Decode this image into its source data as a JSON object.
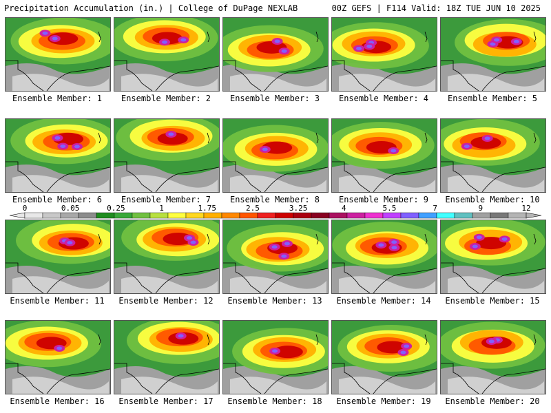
{
  "header": {
    "left": "Precipitation Accumulation (in.) | College of DuPage NEXLAB",
    "right": "00Z GEFS | F114 Valid: 18Z TUE JUN 10 2025"
  },
  "panels": [
    {
      "label": "Ensemble Member: 1"
    },
    {
      "label": "Ensemble Member: 2"
    },
    {
      "label": "Ensemble Member: 3"
    },
    {
      "label": "Ensemble Member: 4"
    },
    {
      "label": "Ensemble Member: 5"
    },
    {
      "label": "Ensemble Member: 6"
    },
    {
      "label": "Ensemble Member: 7"
    },
    {
      "label": "Ensemble Member: 8"
    },
    {
      "label": "Ensemble Member: 9"
    },
    {
      "label": "Ensemble Member: 10"
    },
    {
      "label": "Ensemble Member: 11"
    },
    {
      "label": "Ensemble Member: 12"
    },
    {
      "label": "Ensemble Member: 13"
    },
    {
      "label": "Ensemble Member: 14"
    },
    {
      "label": "Ensemble Member: 15"
    },
    {
      "label": "Ensemble Member: 16"
    },
    {
      "label": "Ensemble Member: 17"
    },
    {
      "label": "Ensemble Member: 18"
    },
    {
      "label": "Ensemble Member: 19"
    },
    {
      "label": "Ensemble Member: 20"
    }
  ],
  "colorbar": {
    "labels": [
      "0",
      "0.05",
      "0.25",
      "1",
      "1.75",
      "2.5",
      "3.25",
      "4",
      "5.5",
      "7",
      "9",
      "12"
    ],
    "colors": [
      "#e8e8e8",
      "#c8c8c8",
      "#a8a8a8",
      "#8c8c8c",
      "#1e8c1e",
      "#38a838",
      "#70c040",
      "#b8e040",
      "#ffff40",
      "#ffd820",
      "#ffb000",
      "#ff8800",
      "#ff5500",
      "#ee2020",
      "#cc0000",
      "#aa0010",
      "#880020",
      "#aa1060",
      "#cc20a0",
      "#ee30d0",
      "#c040ff",
      "#8060ff",
      "#40a0ff",
      "#40ffff",
      "#60c0c0",
      "#a0a0a0",
      "#787878",
      "#b4b4b4"
    ]
  }
}
